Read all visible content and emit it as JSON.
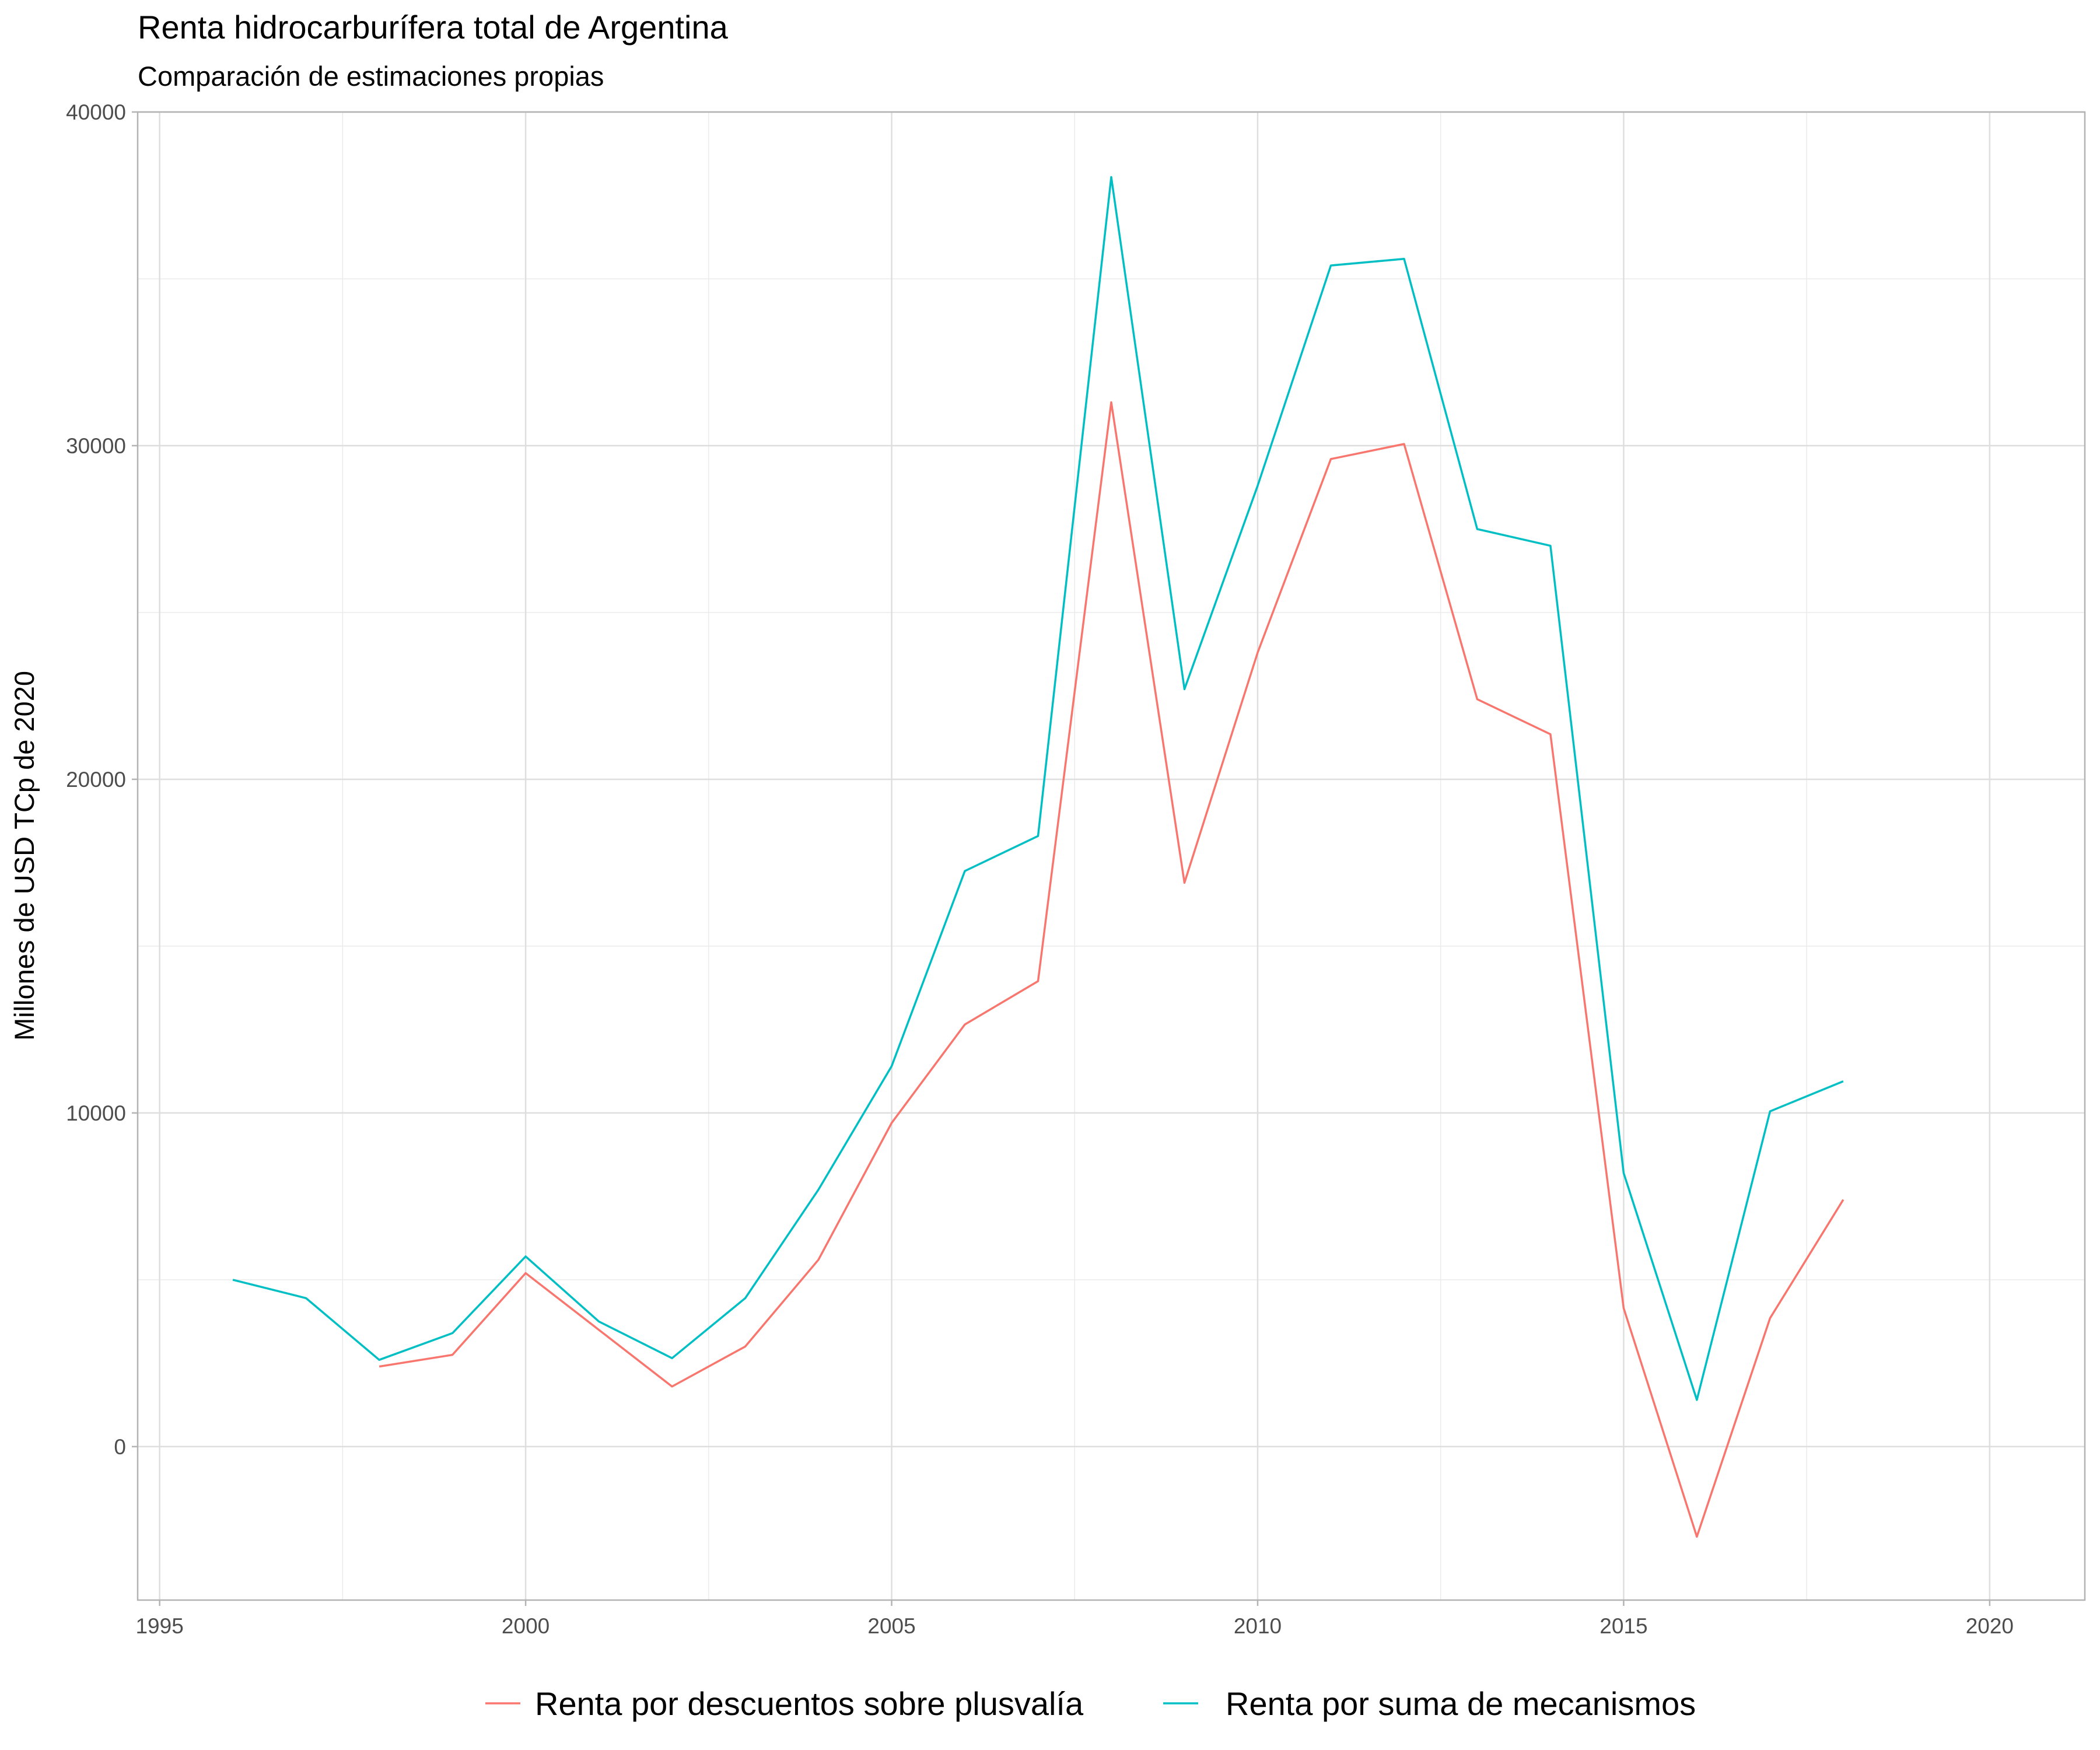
{
  "chart_data": {
    "type": "line",
    "title": "Renta hidrocarburífera total de Argentina",
    "subtitle": "Comparación de estimaciones propias",
    "xlabel": "",
    "ylabel": "Millones de USD TCp de 2020",
    "xlim": [
      1994.7,
      2021.3
    ],
    "ylim": [
      -4600,
      40000
    ],
    "x_ticks": [
      1995,
      2000,
      2005,
      2010,
      2015,
      2020
    ],
    "x_tick_labels": [
      "1995",
      "2000",
      "2005",
      "2010",
      "2015",
      "2020"
    ],
    "y_ticks": [
      0,
      10000,
      20000,
      30000,
      40000
    ],
    "y_tick_labels": [
      "0",
      "10000",
      "20000",
      "30000",
      "40000"
    ],
    "grid": true,
    "legend_position": "bottom",
    "series": [
      {
        "name": "Renta por descuentos sobre plusvalía",
        "color": "#F8766D",
        "x": [
          1998,
          1999,
          2000,
          2001,
          2002,
          2003,
          2004,
          2005,
          2006,
          2007,
          2008,
          2009,
          2010,
          2011,
          2012,
          2013,
          2014,
          2015,
          2016,
          2017,
          2018
        ],
        "values": [
          2400,
          2750,
          5200,
          3500,
          1800,
          3000,
          5600,
          9700,
          12650,
          13950,
          31300,
          16900,
          23800,
          29600,
          30050,
          22400,
          21350,
          4150,
          -2700,
          3850,
          7400
        ]
      },
      {
        "name": "Renta por suma de mecanismos",
        "color": "#00BFC4",
        "x": [
          1996,
          1997,
          1998,
          1999,
          2000,
          2001,
          2002,
          2003,
          2004,
          2005,
          2006,
          2007,
          2008,
          2009,
          2010,
          2011,
          2012,
          2013,
          2014,
          2015,
          2016,
          2017,
          2018
        ],
        "values": [
          5000,
          4450,
          2600,
          3400,
          5700,
          3750,
          2650,
          4450,
          7700,
          11400,
          17250,
          18300,
          38050,
          22700,
          28800,
          35400,
          35600,
          27500,
          27000,
          8200,
          1400,
          10050,
          10950
        ]
      }
    ]
  }
}
